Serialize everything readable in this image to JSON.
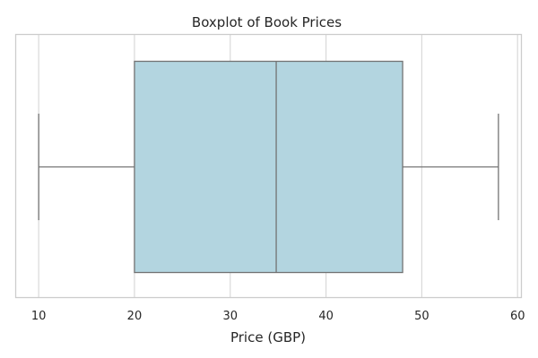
{
  "chart_data": {
    "type": "boxplot",
    "title": "Boxplot of Book Prices",
    "xlabel": "Price (GBP)",
    "ylabel": "",
    "orientation": "horizontal",
    "xlim": [
      7.6,
      60.4
    ],
    "xticks": [
      10,
      20,
      30,
      40,
      50,
      60
    ],
    "grid": true,
    "box": {
      "min": 10,
      "q1": 20,
      "median": 34.8,
      "q3": 48,
      "max": 58
    },
    "colors": {
      "box_fill": "#b3d5e0",
      "line": "#737373",
      "grid": "#d9d9d9",
      "frame": "#cccccc"
    }
  }
}
